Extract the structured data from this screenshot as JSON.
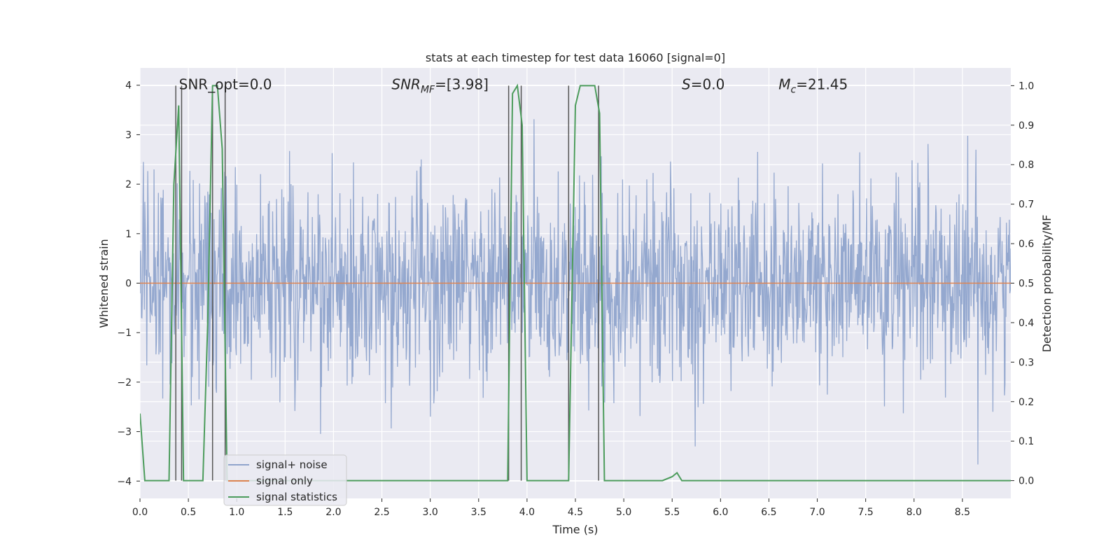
{
  "chart_data": {
    "type": "line",
    "title": "stats at each timestep for test data 16060 [signal=0]",
    "xlabel": "Time (s)",
    "ylabel": "Whitened strain",
    "ylabel_right": "Detection probability/MF",
    "xlim": [
      0.0,
      9.0
    ],
    "ylim": [
      -4.35,
      4.35
    ],
    "ylim_right": [
      -0.045,
      1.045
    ],
    "x_ticks": [
      "0.0",
      "0.5",
      "1.0",
      "1.5",
      "2.0",
      "2.5",
      "3.0",
      "3.5",
      "4.0",
      "4.5",
      "5.0",
      "5.5",
      "6.0",
      "6.5",
      "7.0",
      "7.5",
      "8.0",
      "8.5"
    ],
    "y_ticks": [
      "−4",
      "−3",
      "−2",
      "−1",
      "0",
      "1",
      "2",
      "3",
      "4"
    ],
    "y_ticks_right": [
      "0.0",
      "0.1",
      "0.2",
      "0.3",
      "0.4",
      "0.5",
      "0.6",
      "0.7",
      "0.8",
      "0.9",
      "1.0"
    ],
    "grid": true,
    "legend_position": "lower-left",
    "annotations": [
      {
        "text": "SNR_opt=0.0",
        "x": 0.2,
        "y": 4.0
      },
      {
        "text": "SNR_MF=[3.98]",
        "x": 2.6,
        "y": 4.0
      },
      {
        "text": "S=0.0",
        "x": 5.6,
        "y": 4.0
      },
      {
        "text": "M_c=21.45",
        "x": 6.6,
        "y": 4.0
      }
    ],
    "vlines_x": [
      0.37,
      0.43,
      0.75,
      0.88,
      3.81,
      3.94,
      4.43,
      4.74
    ],
    "series": [
      {
        "name": "signal+ noise",
        "color": "#8fa4cc",
        "style": "noise",
        "sigma": 1.0,
        "n_samples": 1800
      },
      {
        "name": "signal only",
        "color": "#dd8452",
        "x": [
          0.0,
          9.0
        ],
        "y": [
          0.0,
          0.0
        ]
      },
      {
        "name": "signal statistics",
        "color": "#4c9c5c",
        "axis": "right",
        "x": [
          0.0,
          0.05,
          0.1,
          0.15,
          0.2,
          0.25,
          0.3,
          0.35,
          0.4,
          0.45,
          0.5,
          0.55,
          0.6,
          0.65,
          0.7,
          0.75,
          0.8,
          0.85,
          0.9,
          0.95,
          1.0,
          1.5,
          2.0,
          2.5,
          3.0,
          3.5,
          3.75,
          3.8,
          3.85,
          3.9,
          3.95,
          4.0,
          4.05,
          4.1,
          4.2,
          4.3,
          4.43,
          4.5,
          4.55,
          4.6,
          4.65,
          4.7,
          4.75,
          4.8,
          4.85,
          4.9,
          5.0,
          5.4,
          5.5,
          5.55,
          5.6,
          5.65,
          5.7,
          6.0,
          7.0,
          8.0,
          9.0
        ],
        "y": [
          0.17,
          0.0,
          0.0,
          0.0,
          0.0,
          0.0,
          0.0,
          0.75,
          0.95,
          0.0,
          0.0,
          0.0,
          0.0,
          0.0,
          0.4,
          1.0,
          1.0,
          0.84,
          0.0,
          0.0,
          0.0,
          0.0,
          0.0,
          0.0,
          0.0,
          0.0,
          0.0,
          0.0,
          0.98,
          1.0,
          0.9,
          0.0,
          0.0,
          0.0,
          0.0,
          0.0,
          0.0,
          0.95,
          1.0,
          1.0,
          1.0,
          1.0,
          0.93,
          0.0,
          0.0,
          0.0,
          0.0,
          0.0,
          0.01,
          0.02,
          0.0,
          0.0,
          0.0,
          0.0,
          0.0,
          0.0,
          0.0
        ]
      }
    ]
  }
}
